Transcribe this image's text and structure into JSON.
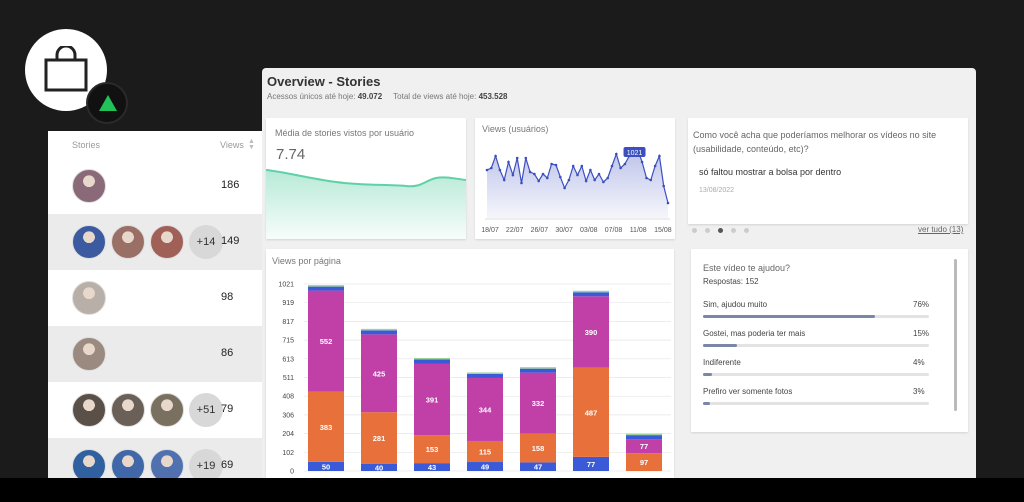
{
  "brand": {
    "logo_icon": "shopping-bag-icon",
    "badge_icon": "triangle-up-icon",
    "badge_color": "#22c25a"
  },
  "stories_table": {
    "col_stories": "Stories",
    "col_views": "Views",
    "rows": [
      {
        "thumbs": [
          "#8a6a78"
        ],
        "more": "",
        "views": "186"
      },
      {
        "thumbs": [
          "#3b5aa0",
          "#9a7066",
          "#a06058"
        ],
        "more": "+14",
        "views": "149"
      },
      {
        "thumbs": [
          "#b8b0a8"
        ],
        "more": "",
        "views": "98"
      },
      {
        "thumbs": [
          "#9a8a80"
        ],
        "more": "",
        "views": "86"
      },
      {
        "thumbs": [
          "#5a5048",
          "#6a6058",
          "#7a7060"
        ],
        "more": "+51",
        "views": "79"
      },
      {
        "thumbs": [
          "#3060a0",
          "#4068a8",
          "#5070b0"
        ],
        "more": "+19",
        "views": "69"
      }
    ]
  },
  "dashboard": {
    "title": "Overview - Stories",
    "unique_label": "Acessos únicos até hoje:",
    "unique_value": "49.072",
    "total_label": "Total de views até hoje:",
    "total_value": "453.528",
    "avg_card": {
      "title": "Média de stories vistos por usuário",
      "value": "7.74",
      "color": "#5fd0a8"
    },
    "views_users": {
      "title": "Views (usuários)",
      "peak_label": "1021",
      "x_labels": [
        "18/07",
        "22/07",
        "26/07",
        "30/07",
        "03/08",
        "07/08",
        "11/08",
        "15/08"
      ],
      "color": "#3d4fbf"
    },
    "question": {
      "text": "Como você acha que poderíamos melhorar os vídeos no site (usabilidade, conteúdo, etc)?",
      "answer": "só faltou mostrar a bolsa por dentro",
      "date": "13/08/2022",
      "see_all": "ver tudo (13)"
    },
    "poll": {
      "title": "Este vídeo te ajudou?",
      "responses": "Respostas: 152",
      "options": [
        {
          "label": "Sim, ajudou muito",
          "pct": "76%",
          "value": 0.76
        },
        {
          "label": "Gostei, mas poderia ter mais",
          "pct": "15%",
          "value": 0.15
        },
        {
          "label": "Indiferente",
          "pct": "4%",
          "value": 0.04
        },
        {
          "label": "Prefiro ver somente fotos",
          "pct": "3%",
          "value": 0.03
        }
      ]
    }
  },
  "chart_data": [
    {
      "type": "area",
      "title": "Views (usuários)",
      "x": [
        "18/07",
        "22/07",
        "26/07",
        "30/07",
        "03/08",
        "07/08",
        "11/08",
        "15/08"
      ],
      "annotations": [
        "1021"
      ]
    },
    {
      "type": "bar",
      "title": "Views por página",
      "y_ticks": [
        "1021",
        "919",
        "817",
        "715",
        "613",
        "511",
        "408",
        "306",
        "204",
        "102",
        "0"
      ],
      "ylim": [
        0,
        1021
      ],
      "bars": [
        {
          "bottom": 50,
          "middle": 383,
          "top": 552
        },
        {
          "bottom": 40,
          "middle": 281,
          "top": 425
        },
        {
          "bottom": 43,
          "middle": 153,
          "top": 391
        },
        {
          "bottom": 49,
          "middle": 115,
          "top": 344
        },
        {
          "bottom": 47,
          "middle": 158,
          "top": 332
        },
        {
          "bottom": 77,
          "middle": 487,
          "top": 390
        },
        {
          "bottom": 0,
          "middle": 97,
          "top": 77
        }
      ],
      "colors": {
        "bottom": "#3a5ad8",
        "middle": "#e8703a",
        "top": "#c040a8",
        "cap": "#3a5ad8"
      }
    }
  ]
}
